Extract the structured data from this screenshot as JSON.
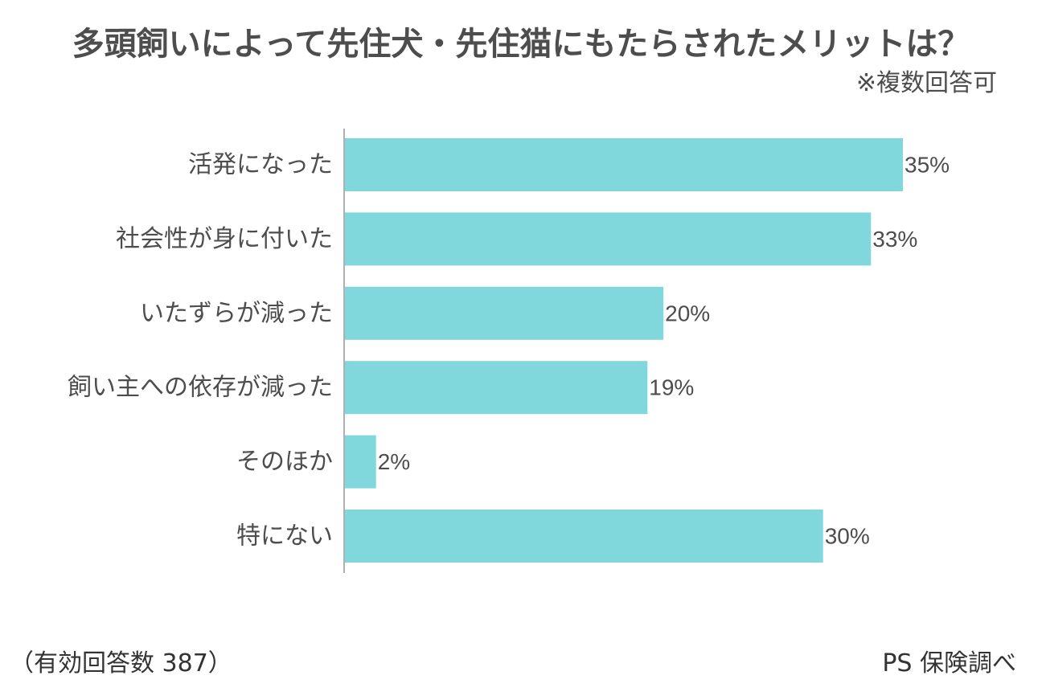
{
  "chart_data": {
    "type": "bar",
    "orientation": "horizontal",
    "title": "多頭飼いによって先住犬・先住猫にもたらされたメリットは？",
    "subtitle": "※複数回答可",
    "categories": [
      "活発になった",
      "社会性が身に付いた",
      "いたずらが減った",
      "飼い主への依存が減った",
      "そのほか",
      "特にない"
    ],
    "values": [
      35,
      33,
      20,
      19,
      2,
      30
    ],
    "value_labels": [
      "35%",
      "33%",
      "20%",
      "19%",
      "2%",
      "30%"
    ],
    "unit": "%",
    "xlim": [
      0,
      35
    ],
    "grid": false,
    "bar_color": "#80d8dc",
    "axis_color": "#b0b0b0"
  },
  "footer": {
    "sample": "（有効回答数 387）",
    "source": "PS 保険調べ"
  }
}
